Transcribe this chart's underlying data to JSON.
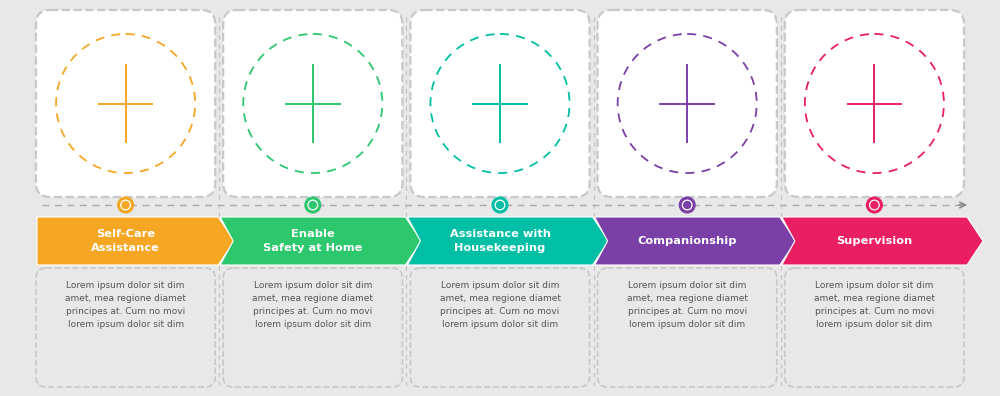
{
  "background_color": "#e8e8e8",
  "steps": [
    {
      "title": "Self-Care\nAssistance",
      "color": "#F5A623",
      "dot_color": "#F5A623"
    },
    {
      "title": "Enable\nSafety at Home",
      "color": "#2DC76D",
      "dot_color": "#2DC76D"
    },
    {
      "title": "Assistance with\nHousekeeping",
      "color": "#00BFA5",
      "dot_color": "#00BFA5"
    },
    {
      "title": "Companionship",
      "color": "#7B3FA8",
      "dot_color": "#7B3FA8"
    },
    {
      "title": "Supervision",
      "color": "#E91E63",
      "dot_color": "#E91E63"
    }
  ],
  "lorem_text": "Lorem ipsum dolor sit dim\namet, mea regione diamet\nprincipes at. Cum no movi\nlorem ipsum dolor sit dim",
  "n": 5,
  "fig_width": 10.0,
  "fig_height": 3.96,
  "dpi": 100
}
